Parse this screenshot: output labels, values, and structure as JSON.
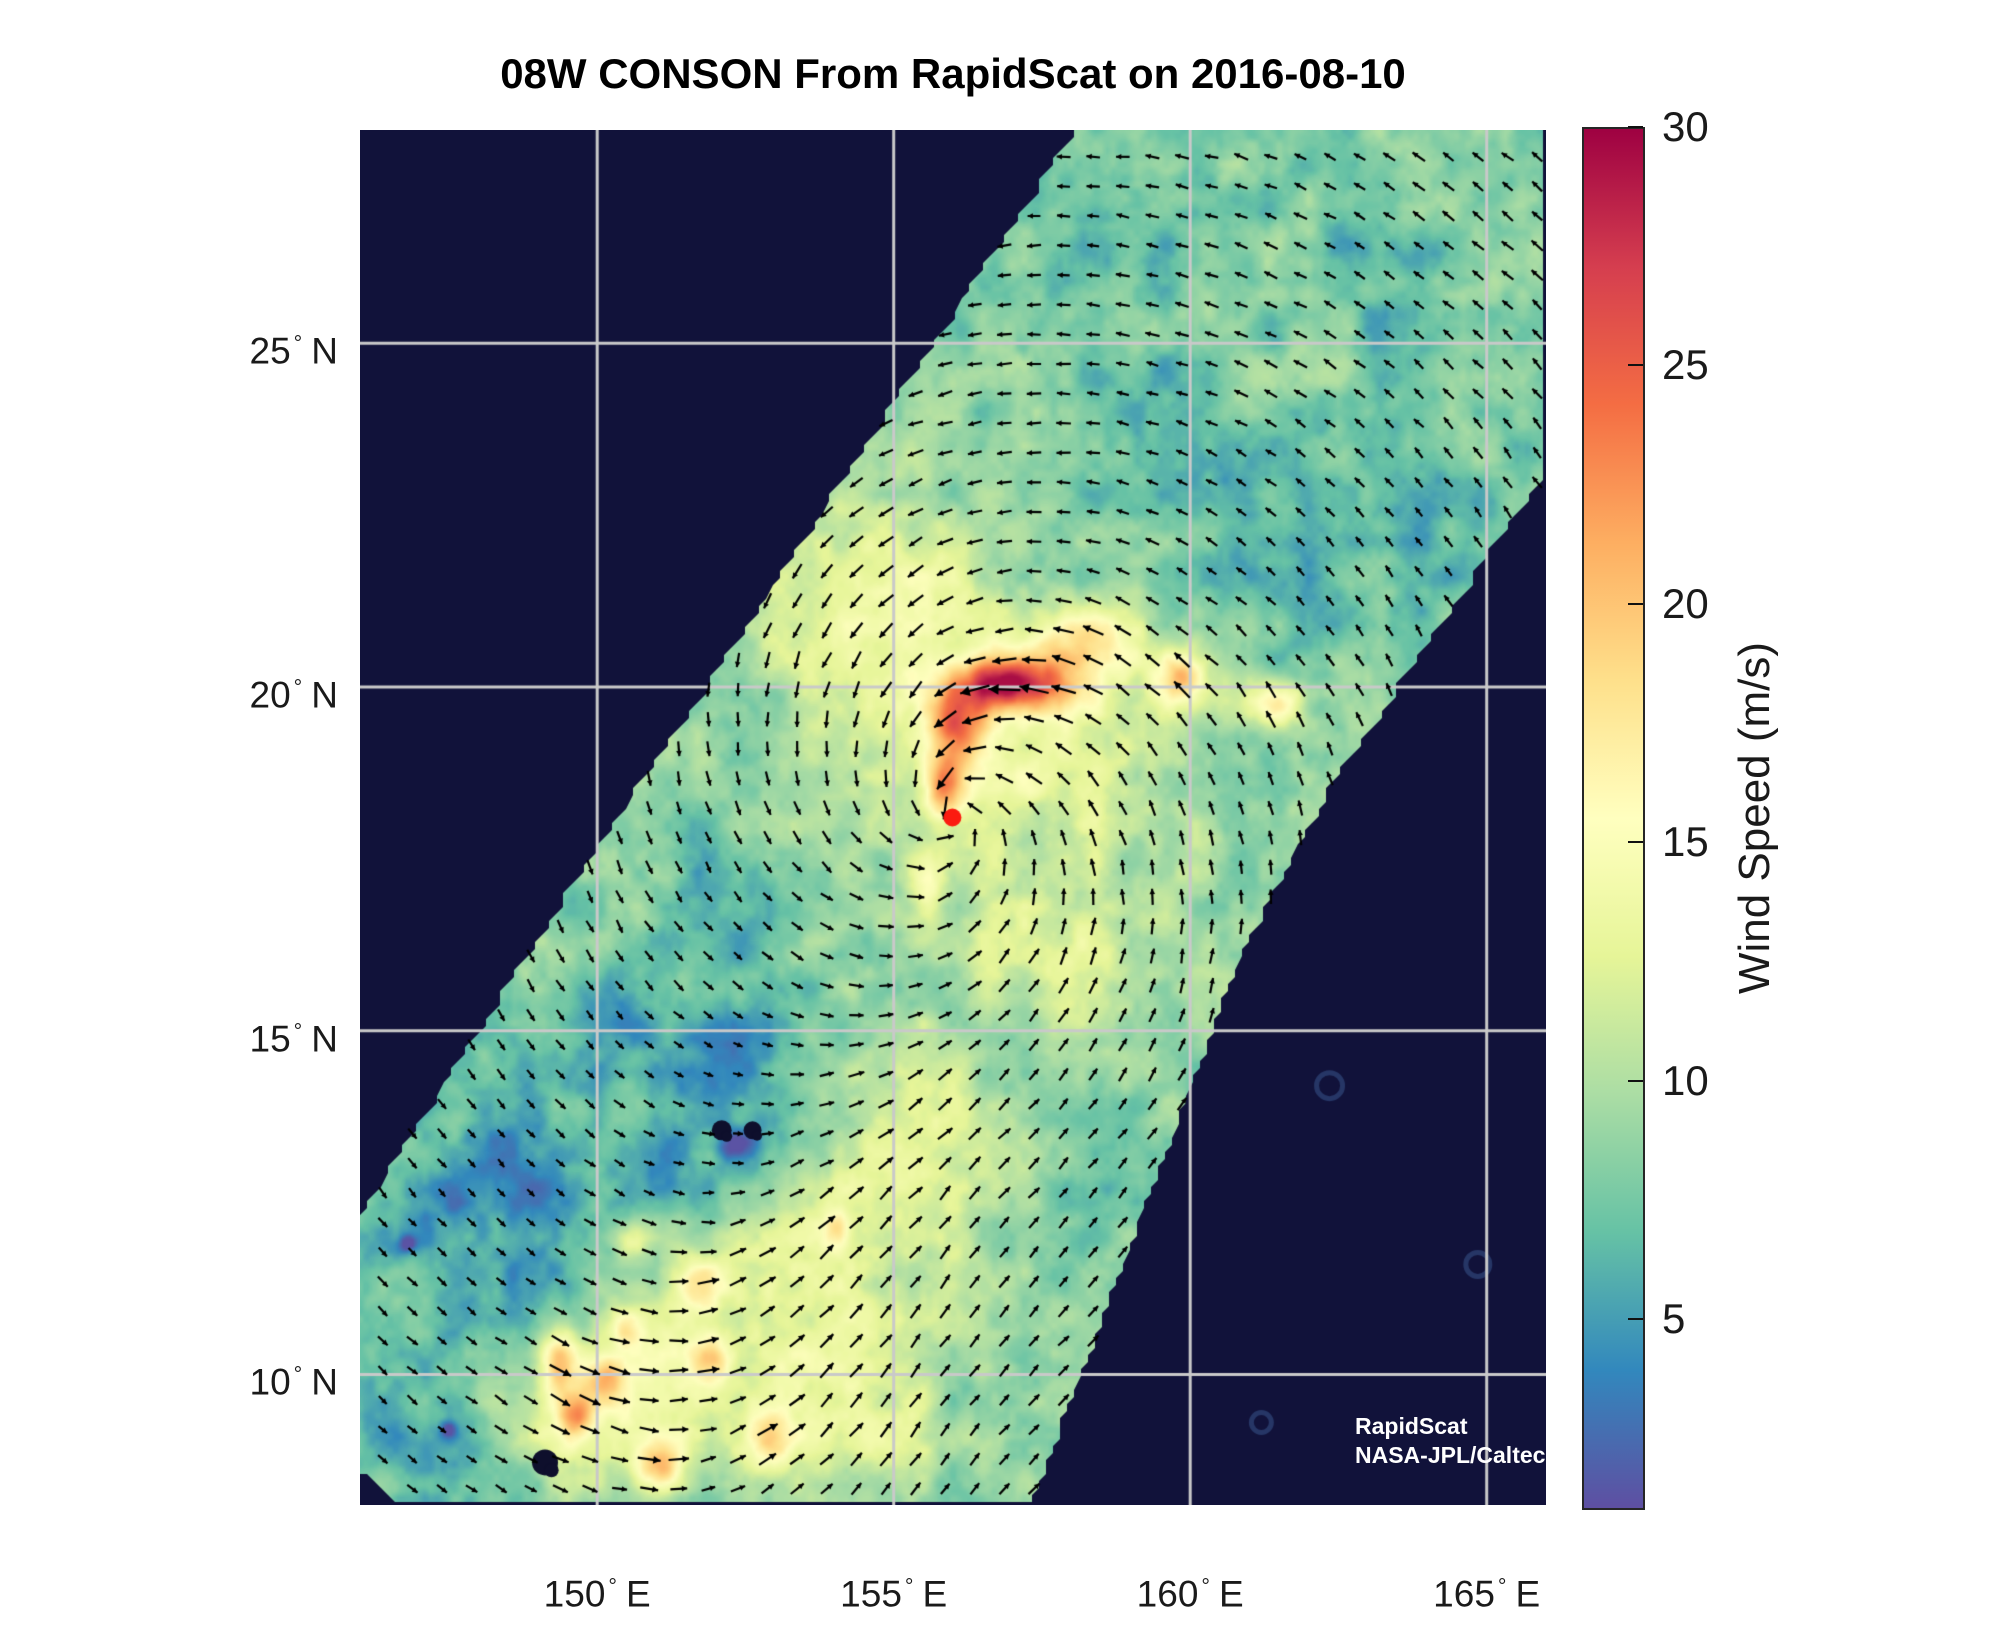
{
  "title": "08W CONSON From RapidScat on 2016-08-10",
  "credit": {
    "line1": "RapidScat",
    "line2": "NASA-JPL/Caltech"
  },
  "colorbar": {
    "label": "Wind Speed (m/s)",
    "tick_values": [
      30,
      25,
      20,
      15,
      10,
      5
    ],
    "value_min": 1,
    "value_max": 30
  },
  "chart_data": {
    "type": "heatmap",
    "subtype": "satellite-wind-vector-field",
    "title": "08W CONSON From RapidScat on 2016-08-10",
    "value_label": "Wind Speed (m/s)",
    "value_range": [
      1,
      30
    ],
    "axes": {
      "lon_min": 146.0,
      "lon_max": 166.0,
      "lat_min": 8.1,
      "lat_max": 28.1,
      "lon_ticks": [
        150,
        155,
        160,
        165
      ],
      "lat_ticks": [
        10,
        15,
        20,
        25
      ],
      "lon_tick_suffix": "E",
      "lat_tick_suffix": "N",
      "grid": true
    },
    "background_color": "#11123a",
    "grid_color": "#c9c9c9",
    "no_data_color": "#0e0f2c",
    "colormap": [
      [
        0.0,
        "#5e4fa2"
      ],
      [
        0.1,
        "#3288bd"
      ],
      [
        0.2,
        "#66c2a5"
      ],
      [
        0.3,
        "#abdda4"
      ],
      [
        0.4,
        "#e6f598"
      ],
      [
        0.5,
        "#ffffbf"
      ],
      [
        0.6,
        "#fee08b"
      ],
      [
        0.7,
        "#fdae61"
      ],
      [
        0.8,
        "#f46d43"
      ],
      [
        0.9,
        "#d53e4f"
      ],
      [
        1.0,
        "#9e0142"
      ]
    ],
    "swath_polygon": [
      [
        158.07,
        28.1
      ],
      [
        166.0,
        28.1
      ],
      [
        166.0,
        23.16
      ],
      [
        162.41,
        18.6
      ],
      [
        160.89,
        16.17
      ],
      [
        157.32,
        8.1
      ],
      [
        146.73,
        8.1
      ],
      [
        146.0,
        8.6
      ],
      [
        146.0,
        12.33
      ],
      [
        150.22,
        17.95
      ],
      [
        151.85,
        20.0
      ],
      [
        154.89,
        23.98
      ]
    ],
    "base_wind_ms": 8.2,
    "features": [
      [
        157.0,
        20.05,
        0.95,
        0.38,
        17
      ],
      [
        156.05,
        19.35,
        0.45,
        0.5,
        12
      ],
      [
        155.85,
        18.55,
        0.33,
        0.45,
        10
      ],
      [
        158.15,
        20.7,
        0.9,
        0.45,
        7
      ],
      [
        159.85,
        20.15,
        0.42,
        0.38,
        10.5
      ],
      [
        161.55,
        19.75,
        0.5,
        0.35,
        7
      ],
      [
        155.6,
        17.0,
        0.28,
        0.55,
        5
      ],
      [
        157.2,
        19.2,
        3.2,
        2.2,
        5.2
      ],
      [
        154.7,
        20.5,
        1.6,
        1.3,
        4.0
      ],
      [
        154.6,
        22.2,
        2.0,
        1.4,
        3.2
      ],
      [
        152.9,
        23.9,
        1.3,
        1.0,
        2.5
      ],
      [
        163.6,
        26.9,
        0.55,
        0.35,
        2.5
      ],
      [
        161.9,
        24.5,
        0.9,
        0.5,
        2.0
      ],
      [
        157.8,
        16.0,
        1.7,
        1.1,
        3.5
      ],
      [
        155.3,
        13.6,
        1.9,
        1.5,
        3.8
      ],
      [
        153.0,
        11.0,
        2.6,
        1.7,
        5.0
      ],
      [
        150.1,
        9.4,
        1.9,
        1.1,
        5.5
      ],
      [
        154.3,
        9.3,
        1.2,
        0.9,
        4.0
      ],
      [
        149.35,
        10.15,
        0.28,
        0.5,
        8
      ],
      [
        149.65,
        9.4,
        0.3,
        0.35,
        8
      ],
      [
        150.15,
        9.95,
        0.3,
        0.3,
        7
      ],
      [
        151.05,
        8.65,
        0.38,
        0.35,
        9
      ],
      [
        151.7,
        11.35,
        0.42,
        0.35,
        8
      ],
      [
        151.95,
        10.2,
        0.35,
        0.3,
        7
      ],
      [
        150.6,
        11.95,
        0.3,
        0.28,
        6
      ],
      [
        152.9,
        9.05,
        0.45,
        0.4,
        6.5
      ],
      [
        154.05,
        12.1,
        0.22,
        0.26,
        6
      ],
      [
        150.45,
        10.7,
        0.35,
        0.3,
        6
      ],
      [
        148.4,
        12.4,
        2.2,
        1.9,
        -4.2
      ],
      [
        152.35,
        14.3,
        1.5,
        1.1,
        -4.5
      ],
      [
        151.2,
        13.0,
        0.9,
        0.8,
        -2.5
      ],
      [
        147.4,
        9.0,
        1.3,
        1.1,
        -3.0
      ],
      [
        146.8,
        11.9,
        0.14,
        0.12,
        -6
      ],
      [
        147.5,
        9.2,
        0.13,
        0.12,
        -5.5
      ],
      [
        152.35,
        13.35,
        0.3,
        0.22,
        -5.5
      ],
      [
        159.8,
        23.3,
        2.2,
        1.6,
        -2.2
      ],
      [
        161.8,
        21.3,
        1.2,
        0.9,
        -2.6
      ],
      [
        163.4,
        25.8,
        1.8,
        1.4,
        -2.0
      ],
      [
        158.9,
        26.6,
        1.5,
        1.0,
        -1.8
      ],
      [
        152.3,
        16.9,
        1.2,
        0.9,
        -2.6
      ],
      [
        150.3,
        15.3,
        1.0,
        0.8,
        -2.2
      ],
      [
        164.2,
        22.4,
        1.0,
        1.2,
        -2.0
      ],
      [
        165.3,
        19.5,
        0.8,
        1.5,
        -2.5
      ]
    ],
    "no_data_spots": [
      [
        152.1,
        13.55,
        10
      ],
      [
        152.62,
        13.55,
        9
      ],
      [
        149.12,
        8.72,
        13
      ]
    ],
    "atoll_rings": [
      [
        162.35,
        14.2,
        13
      ],
      [
        164.85,
        11.6,
        12
      ],
      [
        161.2,
        9.3,
        10
      ]
    ],
    "storm": {
      "designation": "08W",
      "name": "CONSON",
      "date": "2016-08-10",
      "center_lon": 155.99,
      "center_lat": 18.1,
      "marker_color": "#fb1b10",
      "rotation": "counterclockwise"
    },
    "wind_arrows": {
      "spacing_px": 29.6,
      "color": "#000000",
      "inflow_base": 0.4,
      "inflow_decay_deg": 6.0,
      "inflow_floor": 0.06,
      "south_flow": {
        "lon_center": 155.0,
        "lon_sigma": 3.2,
        "lat_max": 15.5,
        "lat_ramp": 4.0,
        "strength": 1.15
      }
    },
    "noise": {
      "octaves": [
        [
          0.6,
          1.8
        ],
        [
          0.24,
          1.0
        ],
        [
          0.1,
          0.45
        ]
      ],
      "seed": 7
    }
  }
}
